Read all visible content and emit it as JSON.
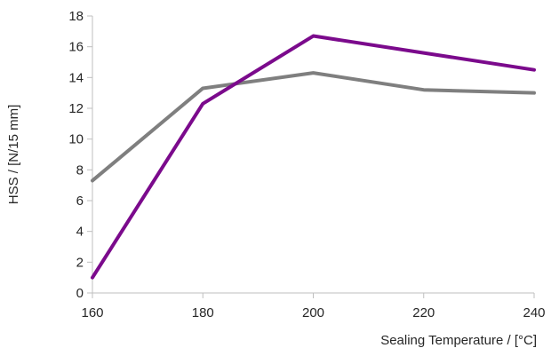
{
  "chart_data": {
    "type": "line",
    "title": "",
    "xlabel": "Sealing Temperature / [°C]",
    "ylabel": "HSS / [N/15 mm]",
    "x": [
      160,
      180,
      200,
      220,
      240
    ],
    "xlim": [
      160,
      240
    ],
    "ylim": [
      0,
      18
    ],
    "xticks": [
      160,
      180,
      200,
      220,
      240
    ],
    "yticks": [
      0,
      2,
      4,
      6,
      8,
      10,
      12,
      14,
      16,
      18
    ],
    "grid": false,
    "legend": "none",
    "series": [
      {
        "color": "#7F7F7F",
        "values": [
          7.3,
          13.3,
          14.3,
          13.2,
          13.0
        ]
      },
      {
        "color": "#7B0A8C",
        "values": [
          1.0,
          12.3,
          16.7,
          15.6,
          14.5
        ]
      }
    ]
  }
}
